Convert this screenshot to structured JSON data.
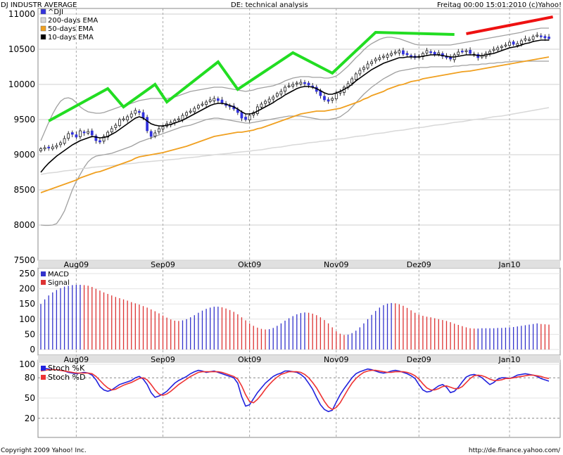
{
  "header": {
    "left_title": "DJ INDUSTR AVERAGE",
    "center_title": "DE: technical analysis",
    "right_title": "Freitag 00:00 15:01:2010 (c)Yahoo!"
  },
  "footer": {
    "copyright": "Copyright 2009 Yahoo! Inc.",
    "url": "http://de.finance.yahoo.com/"
  },
  "colors": {
    "up_candle": "#ffffff",
    "down_candle": "#3333dd",
    "ema10": "#000000",
    "ema50": "#f0a020",
    "ema200": "#d8d8d8",
    "bollinger": "#a0a0a0",
    "trend_green": "#22dd22",
    "trend_red": "#ee1111",
    "macd": "#3333cc",
    "signal": "#dd3333",
    "stoch_k": "#2222dd",
    "stoch_d": "#ee3333",
    "month_band": "#e0e0e0"
  },
  "chart_data": [
    {
      "panel": "price",
      "type": "candlestick",
      "ylim": [
        7500,
        11000
      ],
      "yticks": [
        7500,
        8000,
        8500,
        9000,
        9500,
        10000,
        10500,
        11000
      ],
      "x_ticks": [
        {
          "label": "Aug09",
          "index": 9
        },
        {
          "label": "Sep09",
          "index": 31
        },
        {
          "label": "Okt09",
          "index": 53
        },
        {
          "label": "Nov09",
          "index": 75
        },
        {
          "label": "Dez09",
          "index": 96
        },
        {
          "label": "Jan10",
          "index": 119
        }
      ],
      "legend": [
        "^DJI",
        "200-days EMA",
        "50-days EMA",
        "10-days EMA"
      ],
      "close": [
        9085,
        9100,
        9095,
        9110,
        9130,
        9170,
        9230,
        9300,
        9290,
        9250,
        9340,
        9310,
        9330,
        9280,
        9200,
        9180,
        9260,
        9320,
        9370,
        9420,
        9500,
        9510,
        9540,
        9580,
        9630,
        9600,
        9520,
        9340,
        9260,
        9310,
        9370,
        9400,
        9440,
        9460,
        9490,
        9510,
        9560,
        9600,
        9620,
        9660,
        9700,
        9720,
        9750,
        9780,
        9800,
        9770,
        9740,
        9700,
        9680,
        9650,
        9600,
        9520,
        9500,
        9560,
        9600,
        9680,
        9720,
        9760,
        9790,
        9820,
        9870,
        9900,
        9960,
        9980,
        10000,
        10020,
        10030,
        10010,
        9990,
        9960,
        9900,
        9840,
        9780,
        9760,
        9800,
        9870,
        9900,
        9960,
        10010,
        10080,
        10150,
        10200,
        10240,
        10290,
        10320,
        10360,
        10380,
        10400,
        10420,
        10440,
        10460,
        10480,
        10430,
        10420,
        10400,
        10380,
        10400,
        10440,
        10480,
        10460,
        10420,
        10450,
        10400,
        10380,
        10360,
        10420,
        10460,
        10470,
        10480,
        10440,
        10430,
        10380,
        10410,
        10440,
        10470,
        10500,
        10520,
        10540,
        10560,
        10600,
        10570,
        10580,
        10620,
        10650,
        10640,
        10680,
        10700,
        10680,
        10660,
        10650
      ],
      "ema10": [
        8750,
        8820,
        8880,
        8930,
        8980,
        9020,
        9060,
        9100,
        9140,
        9170,
        9200,
        9220,
        9240,
        9260,
        9250,
        9240,
        9245,
        9260,
        9290,
        9320,
        9360,
        9400,
        9440,
        9480,
        9520,
        9540,
        9520,
        9480,
        9440,
        9420,
        9410,
        9410,
        9420,
        9430,
        9450,
        9470,
        9490,
        9520,
        9550,
        9580,
        9610,
        9640,
        9670,
        9700,
        9720,
        9730,
        9730,
        9720,
        9700,
        9680,
        9650,
        9610,
        9580,
        9580,
        9590,
        9620,
        9650,
        9680,
        9710,
        9740,
        9780,
        9810,
        9850,
        9880,
        9910,
        9940,
        9960,
        9970,
        9970,
        9960,
        9940,
        9910,
        9880,
        9860,
        9860,
        9880,
        9900,
        9930,
        9960,
        10000,
        10050,
        10090,
        10130,
        10170,
        10210,
        10240,
        10270,
        10300,
        10320,
        10340,
        10360,
        10380,
        10380,
        10390,
        10390,
        10390,
        10390,
        10400,
        10410,
        10420,
        10420,
        10420,
        10410,
        10400,
        10390,
        10390,
        10400,
        10410,
        10420,
        10420,
        10420,
        10410,
        10410,
        10420,
        10430,
        10440,
        10460,
        10480,
        10500,
        10520,
        10530,
        10540,
        10560,
        10580,
        10590,
        10610,
        10620,
        10630,
        10630,
        10630
      ],
      "ema50": [
        8460,
        8480,
        8500,
        8520,
        8540,
        8560,
        8580,
        8600,
        8620,
        8640,
        8670,
        8690,
        8710,
        8730,
        8750,
        8760,
        8780,
        8800,
        8820,
        8840,
        8860,
        8880,
        8900,
        8920,
        8950,
        8970,
        8980,
        8990,
        9000,
        9010,
        9020,
        9030,
        9045,
        9060,
        9075,
        9090,
        9105,
        9120,
        9140,
        9160,
        9180,
        9200,
        9220,
        9240,
        9260,
        9270,
        9280,
        9290,
        9300,
        9310,
        9320,
        9320,
        9330,
        9340,
        9350,
        9370,
        9380,
        9400,
        9420,
        9440,
        9460,
        9480,
        9500,
        9520,
        9540,
        9560,
        9580,
        9590,
        9600,
        9610,
        9620,
        9620,
        9620,
        9630,
        9640,
        9650,
        9660,
        9680,
        9700,
        9720,
        9740,
        9760,
        9790,
        9810,
        9840,
        9860,
        9880,
        9900,
        9930,
        9950,
        9970,
        9990,
        10000,
        10020,
        10040,
        10050,
        10060,
        10080,
        10090,
        10100,
        10110,
        10120,
        10130,
        10140,
        10150,
        10160,
        10170,
        10180,
        10185,
        10190,
        10200,
        10210,
        10220,
        10230,
        10240,
        10250,
        10260,
        10270,
        10280,
        10290,
        10300,
        10310,
        10320,
        10330,
        10340,
        10350,
        10360,
        10370,
        10380,
        10390
      ],
      "ema200": [
        8720,
        8730,
        8740,
        8745,
        8750,
        8760,
        8770,
        8775,
        8780,
        8790,
        8800,
        8805,
        8810,
        8820,
        8825,
        8830,
        8835,
        8840,
        8845,
        8850,
        8860,
        8865,
        8870,
        8875,
        8880,
        8890,
        8895,
        8900,
        8905,
        8910,
        8915,
        8920,
        8925,
        8930,
        8935,
        8940,
        8950,
        8955,
        8960,
        8965,
        8970,
        8980,
        8985,
        8990,
        9000,
        9005,
        9010,
        9015,
        9020,
        9030,
        9035,
        9040,
        9045,
        9050,
        9060,
        9065,
        9070,
        9080,
        9090,
        9100,
        9105,
        9110,
        9120,
        9130,
        9140,
        9145,
        9150,
        9160,
        9170,
        9175,
        9180,
        9190,
        9195,
        9200,
        9210,
        9220,
        9225,
        9230,
        9240,
        9250,
        9260,
        9265,
        9270,
        9280,
        9290,
        9300,
        9305,
        9310,
        9320,
        9330,
        9340,
        9345,
        9350,
        9360,
        9370,
        9380,
        9385,
        9390,
        9400,
        9410,
        9420,
        9425,
        9430,
        9440,
        9450,
        9460,
        9465,
        9470,
        9480,
        9490,
        9500,
        9505,
        9510,
        9520,
        9530,
        9540,
        9545,
        9550,
        9560,
        9570,
        9580,
        9590,
        9600,
        9610,
        9620,
        9630,
        9640,
        9650,
        9660,
        9670
      ],
      "boll_upper": [
        9200,
        9330,
        9460,
        9580,
        9680,
        9760,
        9800,
        9810,
        9790,
        9740,
        9680,
        9640,
        9610,
        9600,
        9590,
        9590,
        9600,
        9620,
        9640,
        9660,
        9680,
        9700,
        9710,
        9730,
        9750,
        9770,
        9780,
        9790,
        9800,
        9800,
        9800,
        9800,
        9800,
        9810,
        9820,
        9840,
        9860,
        9880,
        9900,
        9910,
        9920,
        9930,
        9940,
        9950,
        9960,
        9960,
        9960,
        9950,
        9940,
        9930,
        9920,
        9910,
        9900,
        9910,
        9920,
        9940,
        9950,
        9960,
        9970,
        9980,
        10000,
        10020,
        10050,
        10070,
        10090,
        10100,
        10110,
        10110,
        10110,
        10100,
        10100,
        10100,
        10090,
        10090,
        10100,
        10120,
        10160,
        10210,
        10260,
        10320,
        10380,
        10430,
        10490,
        10540,
        10580,
        10610,
        10640,
        10660,
        10670,
        10670,
        10660,
        10650,
        10630,
        10610,
        10590,
        10570,
        10560,
        10560,
        10560,
        10560,
        10560,
        10560,
        10560,
        10560,
        10560,
        10570,
        10580,
        10590,
        10600,
        10610,
        10620,
        10630,
        10640,
        10650,
        10660,
        10670,
        10680,
        10690,
        10700,
        10710,
        10720,
        10730,
        10740,
        10760,
        10770,
        10780,
        10790,
        10800,
        10800,
        10800
      ],
      "boll_lower": [
        8000,
        7995,
        7995,
        8000,
        8020,
        8100,
        8200,
        8350,
        8500,
        8620,
        8720,
        8820,
        8900,
        8950,
        8980,
        8990,
        9000,
        9010,
        9020,
        9040,
        9060,
        9080,
        9100,
        9120,
        9150,
        9180,
        9200,
        9220,
        9240,
        9260,
        9280,
        9300,
        9320,
        9340,
        9360,
        9380,
        9400,
        9410,
        9420,
        9440,
        9460,
        9480,
        9500,
        9510,
        9520,
        9520,
        9510,
        9500,
        9490,
        9480,
        9470,
        9460,
        9450,
        9450,
        9460,
        9470,
        9480,
        9490,
        9500,
        9510,
        9520,
        9530,
        9540,
        9550,
        9550,
        9550,
        9550,
        9540,
        9530,
        9520,
        9510,
        9500,
        9500,
        9500,
        9510,
        9520,
        9540,
        9580,
        9620,
        9680,
        9740,
        9800,
        9860,
        9910,
        9960,
        10000,
        10040,
        10080,
        10110,
        10140,
        10170,
        10190,
        10200,
        10210,
        10220,
        10230,
        10240,
        10240,
        10240,
        10250,
        10250,
        10250,
        10250,
        10250,
        10250,
        10260,
        10260,
        10270,
        10270,
        10280,
        10280,
        10280,
        10290,
        10290,
        10300,
        10300,
        10310,
        10310,
        10320,
        10320,
        10330,
        10330,
        10330,
        10330,
        10330,
        10330,
        10330,
        10330,
        10330,
        10330
      ]
    },
    {
      "panel": "macd",
      "type": "bar",
      "ylim": [
        0,
        250
      ],
      "yticks": [
        0,
        50,
        100,
        150,
        200,
        250
      ],
      "legend": [
        "MACD",
        "Signal"
      ],
      "values": [
        150,
        165,
        178,
        188,
        196,
        202,
        207,
        210,
        212,
        213,
        213,
        212,
        210,
        206,
        200,
        194,
        188,
        183,
        178,
        173,
        169,
        165,
        161,
        156,
        152,
        148,
        143,
        138,
        132,
        126,
        119,
        112,
        105,
        99,
        95,
        94,
        96,
        100,
        106,
        113,
        121,
        128,
        134,
        138,
        141,
        141,
        139,
        135,
        130,
        124,
        116,
        106,
        96,
        86,
        78,
        72,
        68,
        66,
        67,
        71,
        78,
        86,
        95,
        103,
        110,
        116,
        120,
        122,
        121,
        118,
        113,
        106,
        97,
        86,
        73,
        60,
        52,
        48,
        49,
        54,
        62,
        73,
        86,
        100,
        114,
        127,
        138,
        146,
        151,
        153,
        152,
        149,
        144,
        137,
        129,
        121,
        115,
        111,
        108,
        106,
        103,
        100,
        97,
        94,
        90,
        85,
        81,
        77,
        73,
        70,
        69,
        69,
        70,
        70,
        70,
        70,
        71,
        71,
        72,
        73,
        74,
        76,
        78,
        80,
        82,
        84,
        86,
        84,
        83,
        82
      ],
      "signal_from_index": 10
    },
    {
      "panel": "stochastic",
      "type": "line",
      "ylim": [
        0,
        100
      ],
      "yticks": [
        20,
        50,
        80,
        100
      ],
      "dashed_levels": [
        20,
        80
      ],
      "legend": [
        "Stoch %K",
        "Stoch %D"
      ],
      "stoch_k": [
        92,
        94,
        93,
        92,
        92,
        91,
        90,
        88,
        87,
        86,
        87,
        88,
        87,
        84,
        77,
        67,
        62,
        60,
        62,
        66,
        70,
        72,
        74,
        76,
        80,
        82,
        78,
        70,
        58,
        51,
        53,
        56,
        60,
        66,
        72,
        76,
        79,
        82,
        86,
        89,
        91,
        90,
        88,
        89,
        90,
        88,
        86,
        84,
        82,
        80,
        72,
        52,
        38,
        40,
        49,
        58,
        65,
        72,
        77,
        82,
        85,
        87,
        90,
        90,
        89,
        88,
        85,
        80,
        72,
        63,
        51,
        40,
        33,
        30,
        32,
        44,
        55,
        64,
        72,
        80,
        86,
        89,
        91,
        93,
        92,
        90,
        88,
        87,
        88,
        90,
        91,
        90,
        88,
        86,
        83,
        79,
        70,
        62,
        59,
        60,
        64,
        68,
        70,
        66,
        58,
        60,
        66,
        74,
        81,
        84,
        85,
        83,
        80,
        75,
        70,
        73,
        78,
        80,
        80,
        79,
        81,
        84,
        85,
        86,
        85,
        84,
        82,
        79,
        77,
        75
      ],
      "stoch_d": [
        90,
        91,
        92,
        92,
        92,
        91,
        90,
        89,
        88,
        87,
        87,
        87,
        87,
        86,
        82,
        76,
        70,
        65,
        62,
        63,
        66,
        69,
        71,
        73,
        76,
        79,
        80,
        77,
        70,
        62,
        56,
        54,
        56,
        60,
        65,
        70,
        74,
        78,
        82,
        85,
        88,
        89,
        89,
        89,
        89,
        89,
        88,
        86,
        84,
        82,
        78,
        68,
        55,
        45,
        43,
        48,
        55,
        63,
        70,
        76,
        81,
        85,
        87,
        89,
        89,
        89,
        88,
        85,
        80,
        73,
        65,
        55,
        45,
        37,
        33,
        36,
        43,
        53,
        63,
        72,
        79,
        84,
        88,
        90,
        91,
        91,
        90,
        89,
        88,
        88,
        89,
        89,
        89,
        88,
        86,
        83,
        78,
        71,
        65,
        62,
        62,
        64,
        67,
        68,
        66,
        64,
        64,
        67,
        73,
        79,
        83,
        84,
        83,
        81,
        78,
        76,
        76,
        77,
        79,
        79,
        80,
        81,
        82,
        83,
        84,
        84,
        83,
        82,
        80,
        79
      ]
    }
  ],
  "trendlines": [
    {
      "color": "trend_green",
      "points": [
        [
          2,
          9480
        ],
        [
          17,
          9940
        ],
        [
          21,
          9680
        ],
        [
          29,
          10000
        ],
        [
          32,
          9750
        ],
        [
          45,
          10320
        ],
        [
          50,
          9930
        ],
        [
          64,
          10450
        ],
        [
          74,
          10160
        ],
        [
          85,
          10740
        ],
        [
          105,
          10710
        ]
      ]
    },
    {
      "color": "trend_red",
      "points": [
        [
          108,
          10720
        ],
        [
          130,
          10960
        ]
      ]
    }
  ]
}
